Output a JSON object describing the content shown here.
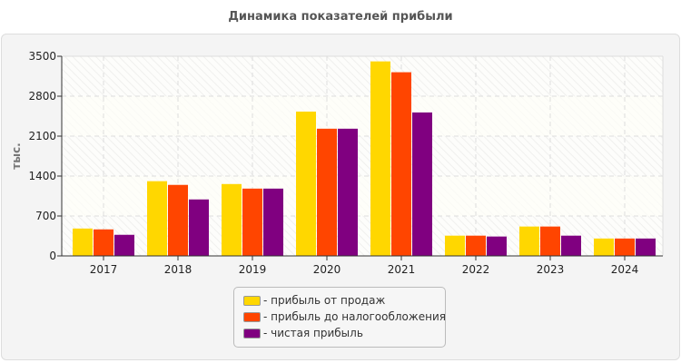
{
  "chart_data": {
    "type": "bar",
    "title": "Динамика показателей прибыли",
    "ylabel": "тыс.",
    "xlabel": "",
    "ylim": [
      0,
      3500
    ],
    "yticks": [
      0,
      700,
      1400,
      2100,
      2800,
      3500
    ],
    "grid": true,
    "legend_position": "bottom",
    "categories": [
      "2017",
      "2018",
      "2019",
      "2020",
      "2021",
      "2022",
      "2023",
      "2024"
    ],
    "series": [
      {
        "name": "- прибыль от продаж",
        "color": "#FFD700",
        "values": [
          480,
          1310,
          1260,
          2530,
          3410,
          355,
          515,
          305
        ]
      },
      {
        "name": "- прибыль до налогообложения",
        "color": "#FF4500",
        "values": [
          465,
          1245,
          1180,
          2230,
          3220,
          355,
          515,
          305
        ]
      },
      {
        "name": "- чистая прибыль",
        "color": "#800080",
        "values": [
          370,
          990,
          1180,
          2230,
          2515,
          340,
          355,
          305
        ]
      }
    ]
  }
}
